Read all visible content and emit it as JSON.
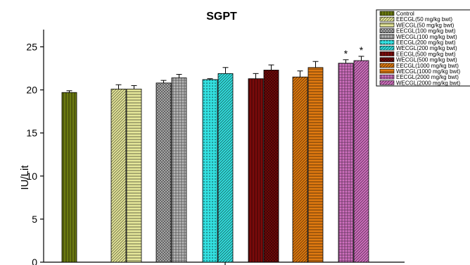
{
  "chart_data": {
    "type": "bar",
    "title": "SGPT",
    "xlabel": "",
    "ylabel": "IU/Lit",
    "ylim": [
      0,
      27
    ],
    "yticks": [
      0,
      5,
      10,
      15,
      20,
      25
    ],
    "grid": false,
    "legend_position": "top-right",
    "categories": [
      "Control",
      "EECGL(50 mg/kg bwt)",
      "WECGL(50 mg/kg bwt)",
      "EECGL(100 mg/kg bwt)",
      "WECGL(100 mg/kg bwt)",
      "EECGL(200 mg/kg bwt)",
      "WECGL(200 mg/kg bwt)",
      "EECGL(500 mg/kg bwt)",
      "WECGL(500 mg/kg bwt)",
      "EECGL(1000 mg/kg bwt)",
      "WECGL(1000 mg/kg bwt)",
      "EECGL(2000 mg/kg bwt)",
      "WECGL(2000 mg/kg bwt)"
    ],
    "values": [
      19.7,
      20.1,
      20.1,
      20.8,
      21.4,
      21.2,
      21.9,
      21.3,
      22.3,
      21.5,
      22.6,
      23.1,
      23.4
    ],
    "errors": [
      0.2,
      0.5,
      0.4,
      0.3,
      0.4,
      0.1,
      0.7,
      0.6,
      0.6,
      0.7,
      0.7,
      0.4,
      0.5
    ],
    "annotations": [
      "",
      "",
      "",
      "",
      "",
      "",
      "",
      "",
      "",
      "",
      "",
      "*",
      "*"
    ],
    "colors": [
      "#6b7a10",
      "#e6e89a",
      "#e6e89a",
      "#b8b8b8",
      "#b8b8b8",
      "#33e0e0",
      "#33e0e0",
      "#7a0a0a",
      "#7a0a0a",
      "#e07a10",
      "#e07a10",
      "#d070c0",
      "#d070c0"
    ],
    "patterns": [
      "vert",
      "diag",
      "horiz",
      "cross",
      "grid",
      "dots",
      "diag",
      "vert",
      "cross",
      "diag",
      "horiz",
      "grid",
      "diag"
    ]
  }
}
